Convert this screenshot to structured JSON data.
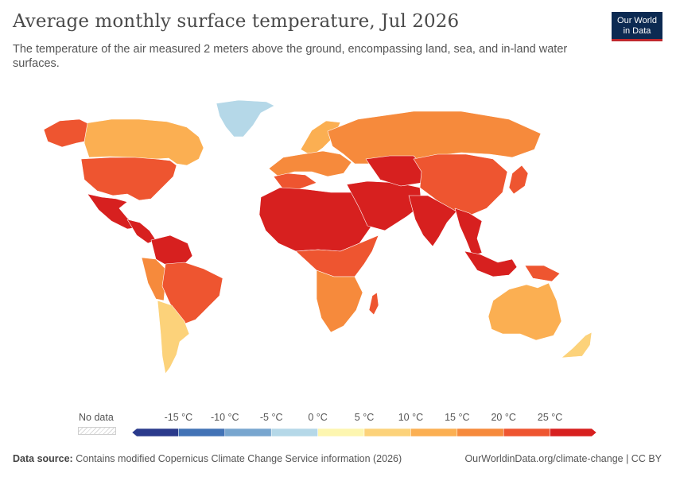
{
  "header": {
    "title": "Average monthly surface temperature, Jul 2026",
    "subtitle": "The temperature of the air measured 2 meters above the ground, encompassing land, sea, and in-land water surfaces."
  },
  "logo": {
    "line1": "Our World",
    "line2": "in Data",
    "bg": "#0c2a52",
    "accent": "#c0282d"
  },
  "legend": {
    "no_data_label": "No data",
    "ticks": [
      "-15 °C",
      "-10 °C",
      "-5 °C",
      "0 °C",
      "5 °C",
      "10 °C",
      "15 °C",
      "20 °C",
      "25 °C"
    ],
    "bins": [
      {
        "color": "#2a3a8c"
      },
      {
        "color": "#4273b6"
      },
      {
        "color": "#78a6cf"
      },
      {
        "color": "#b5d8e8"
      },
      {
        "color": "#fdf6b0"
      },
      {
        "color": "#fcd27a"
      },
      {
        "color": "#fbaf52"
      },
      {
        "color": "#f68a3c"
      },
      {
        "color": "#ee5530"
      },
      {
        "color": "#d7201f"
      }
    ]
  },
  "map": {
    "regions": [
      {
        "name": "Greenland",
        "color": "#b5d8e8"
      },
      {
        "name": "Canada",
        "color": "#fbaf52"
      },
      {
        "name": "Alaska",
        "color": "#ee5530"
      },
      {
        "name": "United States",
        "color": "#ee5530"
      },
      {
        "name": "Mexico",
        "color": "#d7201f"
      },
      {
        "name": "Central America",
        "color": "#d7201f"
      },
      {
        "name": "Northern South America",
        "color": "#d7201f"
      },
      {
        "name": "Andes",
        "color": "#f68a3c"
      },
      {
        "name": "Brazil",
        "color": "#ee5530"
      },
      {
        "name": "Argentina",
        "color": "#fcd27a"
      },
      {
        "name": "Scandinavia",
        "color": "#fbaf52"
      },
      {
        "name": "Europe",
        "color": "#f68a3c"
      },
      {
        "name": "Southern Europe",
        "color": "#ee5530"
      },
      {
        "name": "Russia",
        "color": "#f68a3c"
      },
      {
        "name": "North Africa",
        "color": "#d7201f"
      },
      {
        "name": "Central Africa",
        "color": "#ee5530"
      },
      {
        "name": "Southern Africa",
        "color": "#f68a3c"
      },
      {
        "name": "Madagascar",
        "color": "#ee5530"
      },
      {
        "name": "Middle East",
        "color": "#d7201f"
      },
      {
        "name": "Central Asia",
        "color": "#d7201f"
      },
      {
        "name": "China",
        "color": "#ee5530"
      },
      {
        "name": "Japan",
        "color": "#ee5530"
      },
      {
        "name": "India",
        "color": "#d7201f"
      },
      {
        "name": "Southeast Asia",
        "color": "#d7201f"
      },
      {
        "name": "Indonesia",
        "color": "#d7201f"
      },
      {
        "name": "Papua New Guinea",
        "color": "#ee5530"
      },
      {
        "name": "Australia",
        "color": "#fbaf52"
      },
      {
        "name": "New Zealand",
        "color": "#fcd27a"
      }
    ]
  },
  "footer": {
    "source_label": "Data source:",
    "source_text": "Contains modified Copernicus Climate Change Service information (2026)",
    "url_text": "OurWorldinData.org/climate-change | CC BY"
  }
}
